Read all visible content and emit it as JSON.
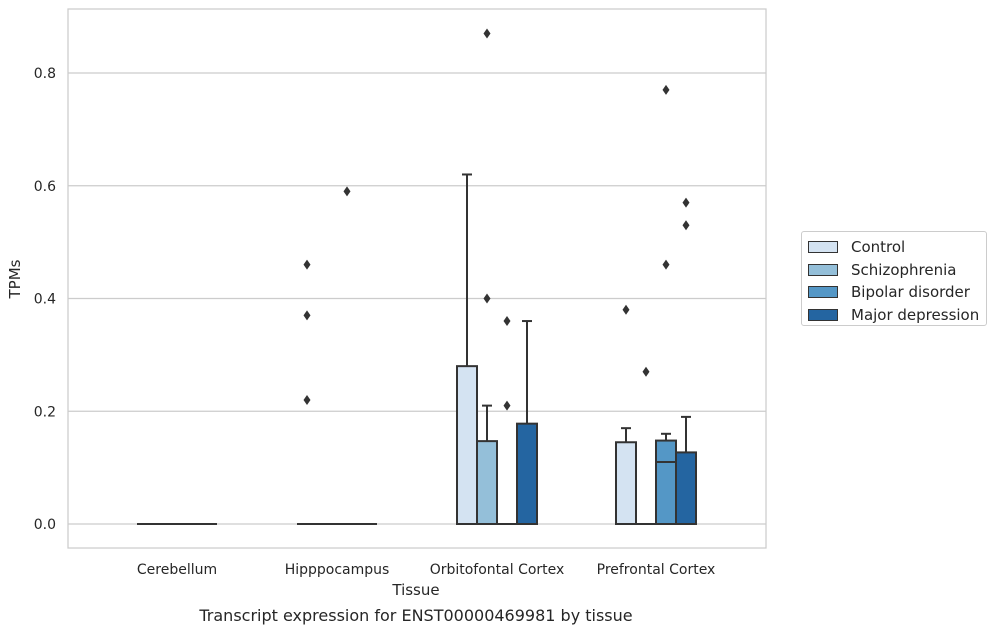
{
  "chart_data": {
    "type": "boxplot",
    "title": "Transcript expression for ENST00000469981 by tissue",
    "xlabel": "Tissue",
    "ylabel": "TPMs",
    "ylim": [
      -0.043,
      0.915
    ],
    "yticks": [
      "0.0",
      "0.2",
      "0.4",
      "0.6",
      "0.8"
    ],
    "grid": true,
    "legend_position": "right",
    "categories": [
      "Cerebellum",
      "Hipppocampus",
      "Orbitofontal Cortex",
      "Prefrontal Cortex"
    ],
    "series": [
      {
        "name": "Control",
        "color": "#d4e3f2",
        "boxes": [
          {
            "q1": 0,
            "median": 0,
            "q3": 0,
            "whisker_low": 0,
            "whisker_high": 0,
            "outliers": []
          },
          {
            "q1": 0,
            "median": 0,
            "q3": 0,
            "whisker_low": 0,
            "whisker_high": 0,
            "outliers": [
              0.22,
              0.37,
              0.46
            ]
          },
          {
            "q1": 0,
            "median": 0,
            "q3": 0.28,
            "whisker_low": 0,
            "whisker_high": 0.62,
            "outliers": []
          },
          {
            "q1": 0,
            "median": 0,
            "q3": 0.145,
            "whisker_low": 0,
            "whisker_high": 0.17,
            "outliers": [
              0.38
            ]
          }
        ]
      },
      {
        "name": "Schizophrenia",
        "color": "#94bfd9",
        "boxes": [
          {
            "q1": 0,
            "median": 0,
            "q3": 0,
            "whisker_low": 0,
            "whisker_high": 0,
            "outliers": []
          },
          {
            "q1": 0,
            "median": 0,
            "q3": 0,
            "whisker_low": 0,
            "whisker_high": 0,
            "outliers": []
          },
          {
            "q1": 0,
            "median": 0,
            "q3": 0.147,
            "whisker_low": 0,
            "whisker_high": 0.21,
            "outliers": [
              0.4,
              0.87
            ]
          },
          {
            "q1": 0,
            "median": 0,
            "q3": 0,
            "whisker_low": 0,
            "whisker_high": 0,
            "outliers": [
              0.27
            ]
          }
        ]
      },
      {
        "name": "Bipolar disorder",
        "color": "#5497c6",
        "boxes": [
          {
            "q1": 0,
            "median": 0,
            "q3": 0,
            "whisker_low": 0,
            "whisker_high": 0,
            "outliers": []
          },
          {
            "q1": 0,
            "median": 0,
            "q3": 0,
            "whisker_low": 0,
            "whisker_high": 0,
            "outliers": [
              0.59
            ]
          },
          {
            "q1": 0,
            "median": 0,
            "q3": 0,
            "whisker_low": 0,
            "whisker_high": 0,
            "outliers": [
              0.21,
              0.36
            ]
          },
          {
            "q1": 0,
            "median": 0.11,
            "q3": 0.148,
            "whisker_low": 0,
            "whisker_high": 0.16,
            "outliers": [
              0.46,
              0.77
            ]
          }
        ]
      },
      {
        "name": "Major depression",
        "color": "#2465a1",
        "boxes": [
          {
            "q1": 0,
            "median": 0,
            "q3": 0,
            "whisker_low": 0,
            "whisker_high": 0,
            "outliers": []
          },
          {
            "q1": 0,
            "median": 0,
            "q3": 0,
            "whisker_low": 0,
            "whisker_high": 0,
            "outliers": []
          },
          {
            "q1": 0,
            "median": 0,
            "q3": 0.178,
            "whisker_low": 0,
            "whisker_high": 0.36,
            "outliers": []
          },
          {
            "q1": 0,
            "median": 0,
            "q3": 0.127,
            "whisker_low": 0,
            "whisker_high": 0.19,
            "outliers": [
              0.53,
              0.57
            ]
          }
        ]
      }
    ]
  }
}
